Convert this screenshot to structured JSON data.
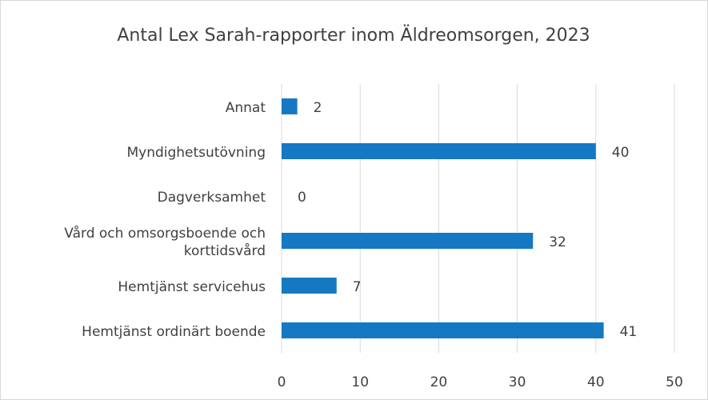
{
  "chart_data": {
    "type": "barh",
    "title": "Antal Lex Sarah-rapporter inom Äldreomsorgen, 2023",
    "categories": [
      "Annat",
      "Myndighetsutövning",
      "Dagverksamhet",
      "Vård och omsorgsboende och korttidsvård",
      "Hemtjänst servicehus",
      "Hemtjänst ordinärt boende"
    ],
    "values": [
      2,
      40,
      0,
      32,
      7,
      41
    ],
    "color": "#1479c2",
    "xlim": [
      0,
      50
    ],
    "xticks": [
      0,
      10,
      20,
      30,
      40,
      50
    ],
    "grid": true
  }
}
